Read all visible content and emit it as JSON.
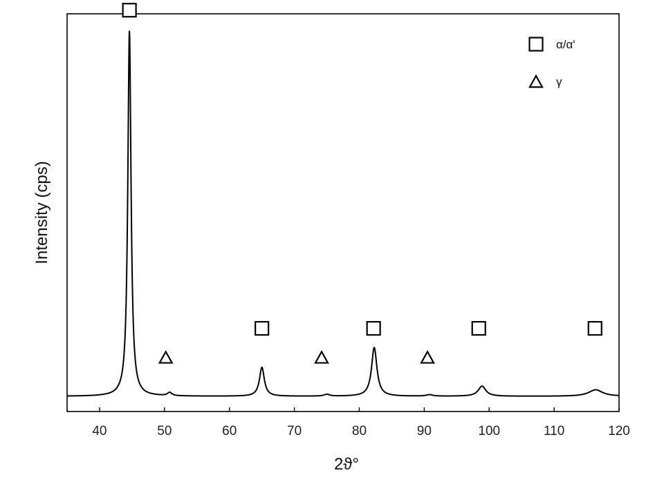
{
  "chart_data": {
    "type": "line",
    "xlabel": "2ϑ°",
    "ylabel": "Intensity (cps)",
    "xlim": [
      35,
      120
    ],
    "ylim": [
      0,
      110
    ],
    "xticks": [
      40,
      50,
      60,
      70,
      80,
      90,
      100,
      110,
      120
    ],
    "yticks_shown": false,
    "grid": false,
    "baseline": 4.2,
    "peaks": [
      {
        "x": 44.6,
        "height": 101,
        "width": 0.3
      },
      {
        "x": 50.8,
        "height": 0.9,
        "width": 0.4
      },
      {
        "x": 65.0,
        "height": 8.0,
        "width": 0.45
      },
      {
        "x": 75.0,
        "height": 0.5,
        "width": 0.5
      },
      {
        "x": 82.3,
        "height": 13.5,
        "width": 0.5
      },
      {
        "x": 90.8,
        "height": 0.4,
        "width": 0.6
      },
      {
        "x": 98.9,
        "height": 2.8,
        "width": 0.7
      },
      {
        "x": 116.4,
        "height": 1.8,
        "width": 1.3
      }
    ],
    "markers": [
      {
        "symbol": "square",
        "x": 44.6,
        "y": 111
      },
      {
        "symbol": "triangle",
        "x": 50.2,
        "y": 15
      },
      {
        "symbol": "square",
        "x": 65.0,
        "y": 23
      },
      {
        "symbol": "triangle",
        "x": 74.2,
        "y": 15
      },
      {
        "symbol": "square",
        "x": 82.2,
        "y": 23
      },
      {
        "symbol": "triangle",
        "x": 90.5,
        "y": 15
      },
      {
        "symbol": "square",
        "x": 98.4,
        "y": 23
      },
      {
        "symbol": "square",
        "x": 116.3,
        "y": 23
      }
    ],
    "legend": {
      "placement": "top-right",
      "entries": [
        {
          "symbol": "square",
          "label": "α/α'"
        },
        {
          "symbol": "triangle",
          "label": "γ"
        }
      ]
    },
    "colors": {
      "line": "#000000",
      "axes": "#000000"
    }
  }
}
